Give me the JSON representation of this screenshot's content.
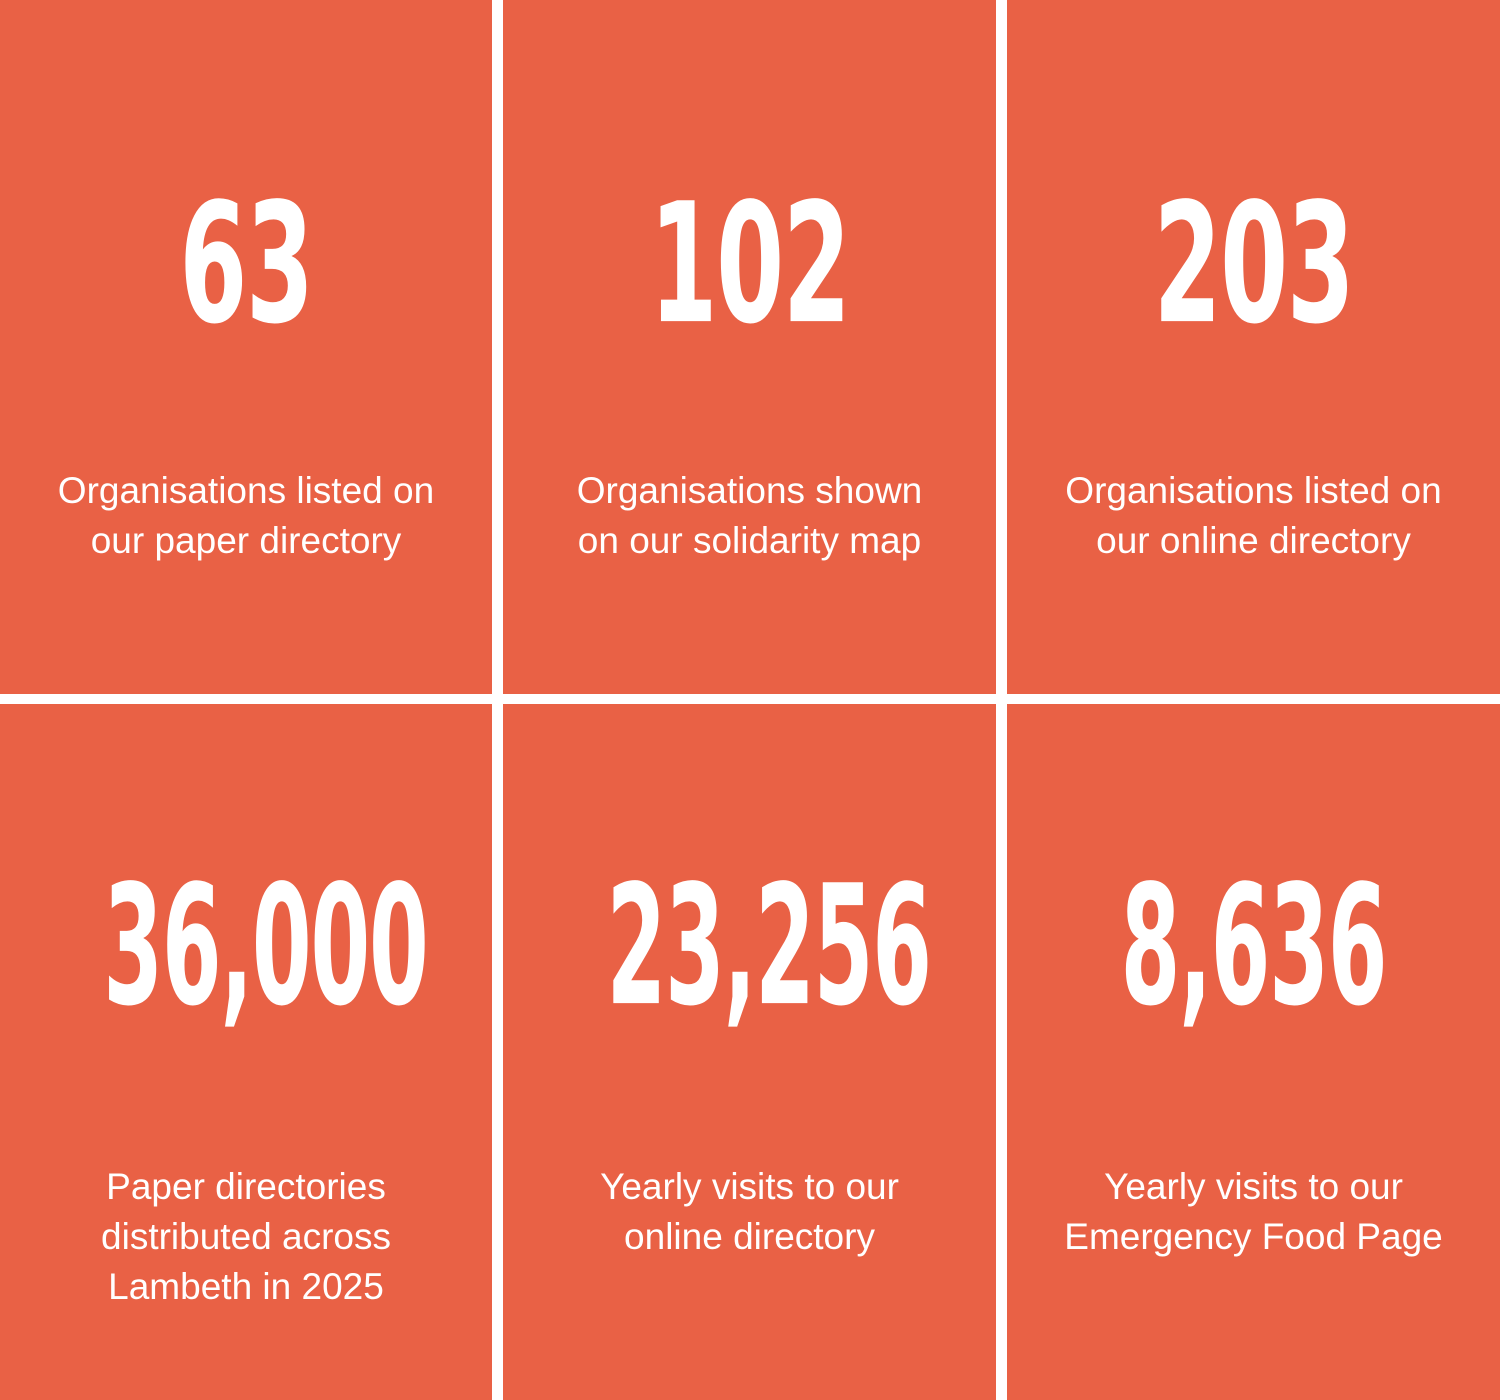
{
  "colors": {
    "tile_background": "#e96145",
    "text": "#ffffff",
    "gutter": "#ffffff"
  },
  "stats": [
    {
      "number": "63",
      "label_line1": "Organisations listed on",
      "label_line2": "our paper directory"
    },
    {
      "number": "102",
      "label_line1": "Organisations shown",
      "label_line2": "on our solidarity map"
    },
    {
      "number": "203",
      "label_line1": "Organisations listed on",
      "label_line2": "our online directory"
    },
    {
      "number": "36,000",
      "label_line1": "Paper directories",
      "label_line2": "distributed across",
      "label_line3": "Lambeth in 2025"
    },
    {
      "number": "23,256",
      "label_line1": "Yearly visits to our",
      "label_line2": "online directory"
    },
    {
      "number": "8,636",
      "label_line1": "Yearly visits to our",
      "label_line2": "Emergency Food Page"
    }
  ]
}
